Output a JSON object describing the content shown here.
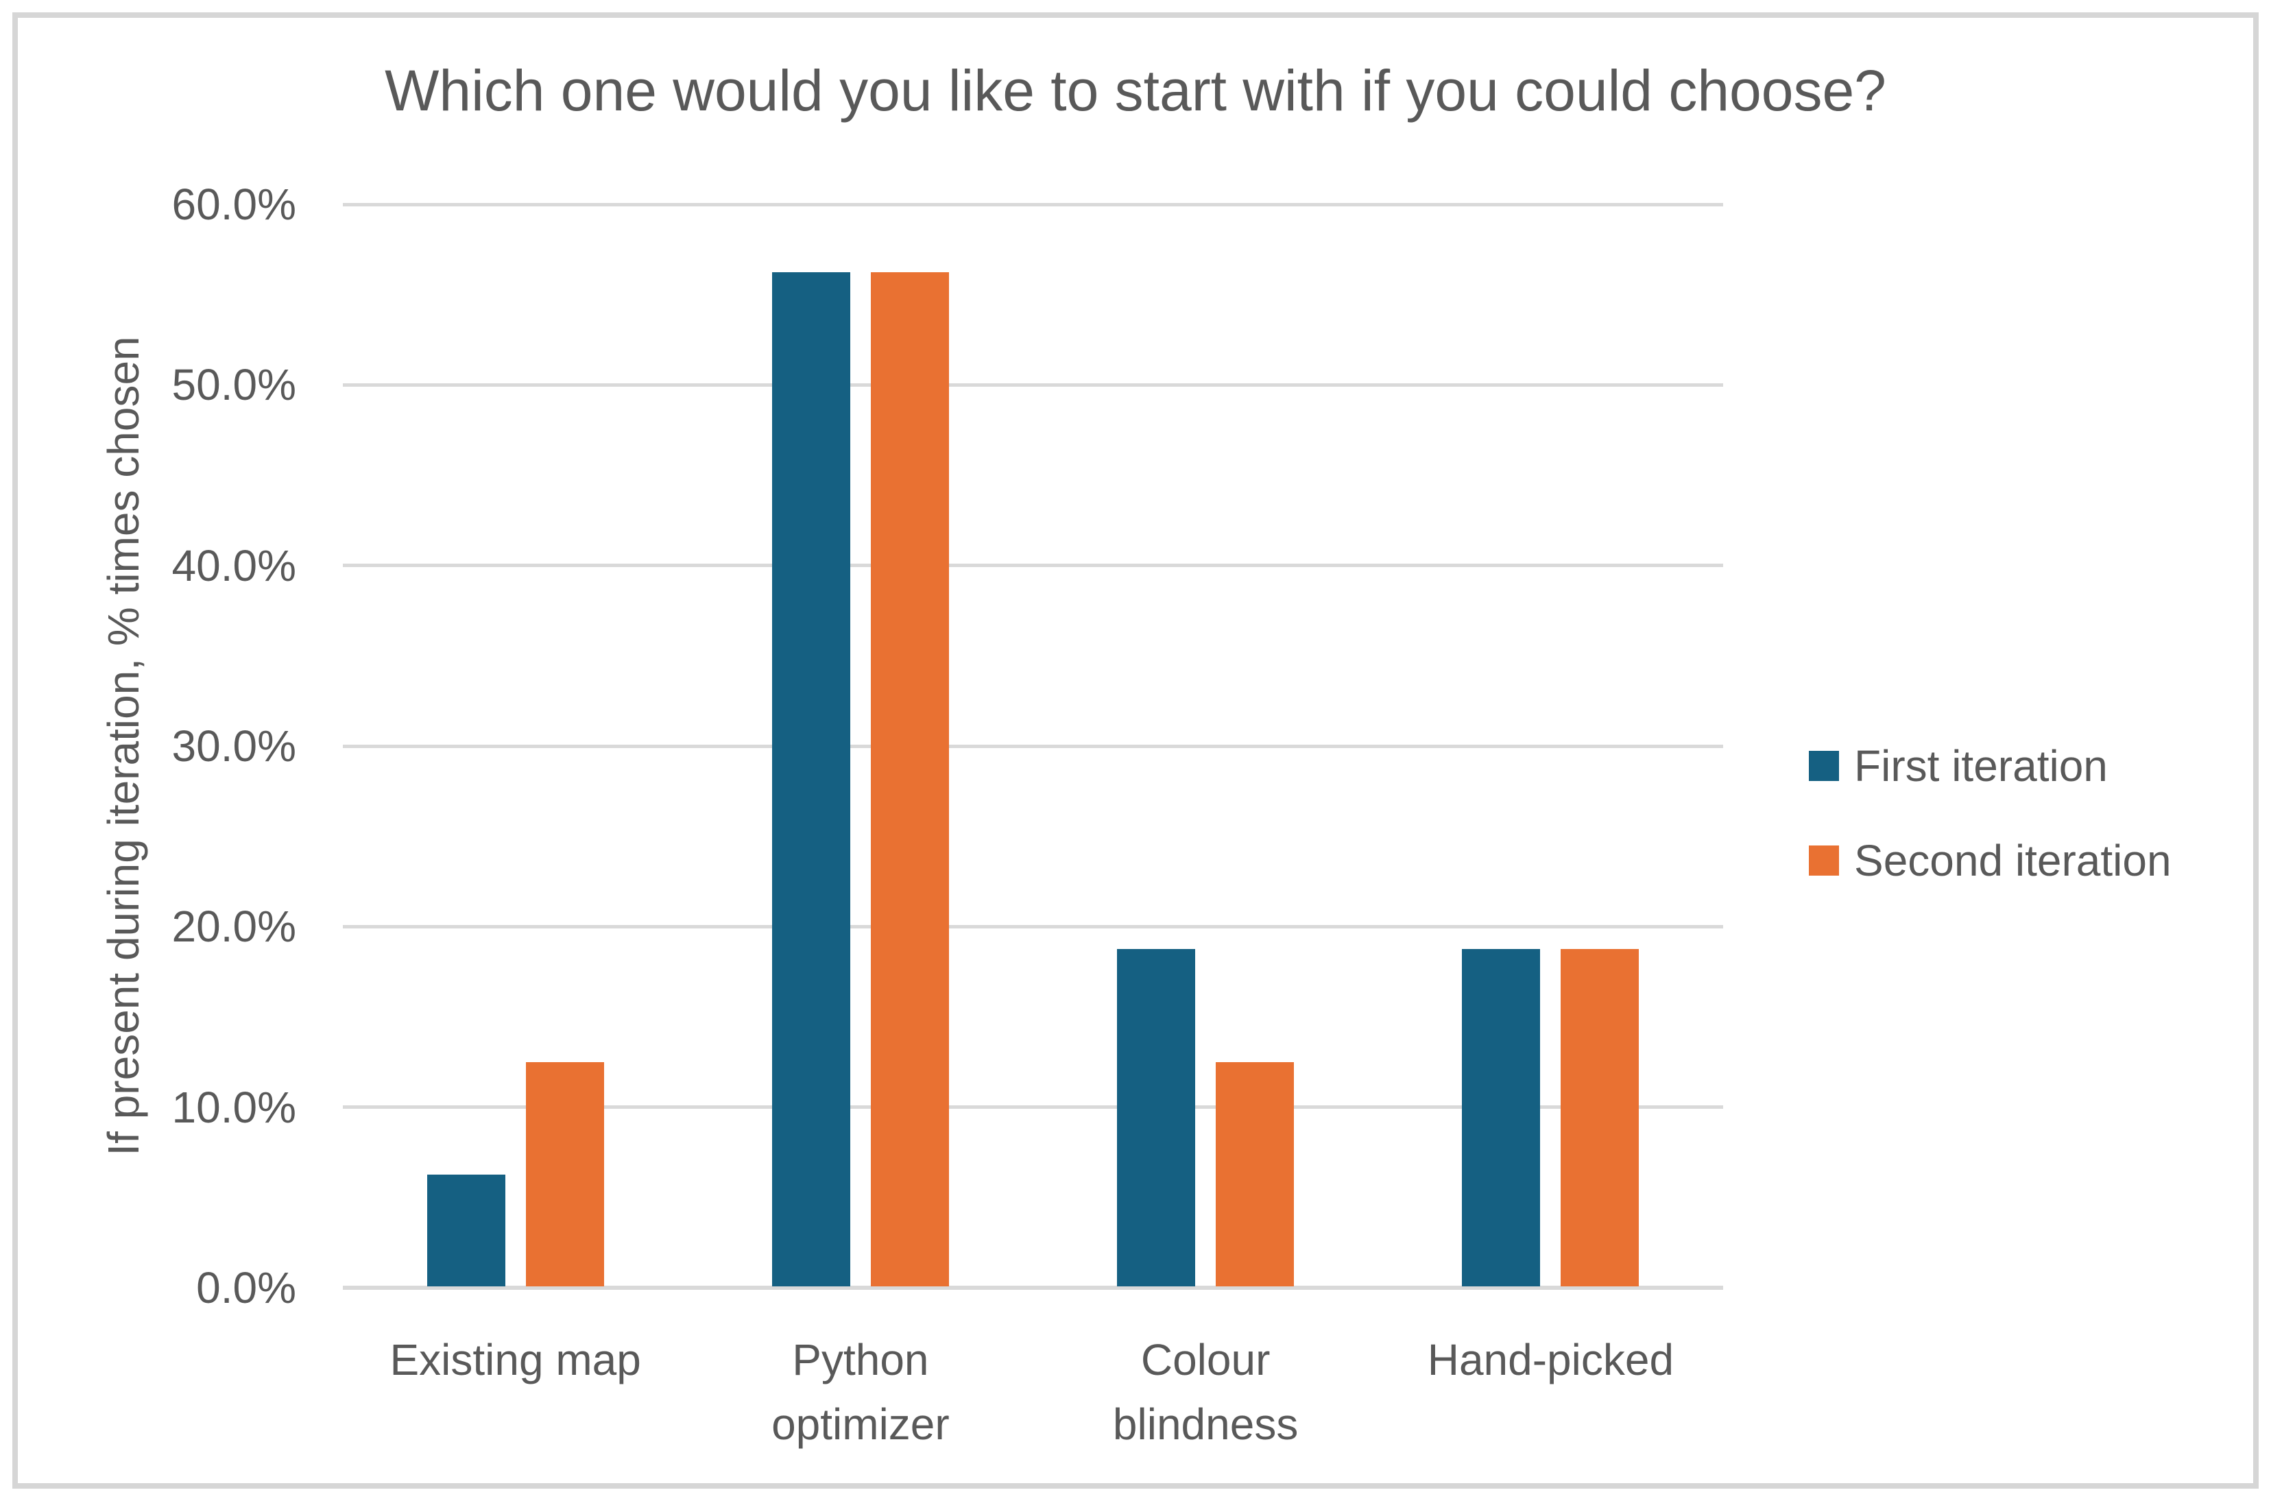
{
  "chart_data": {
    "type": "bar",
    "title": "Which one would you like to start with if you could choose?",
    "xlabel": "",
    "ylabel": "If present during iteration, % times chosen",
    "categories": [
      "Existing map",
      "Python optimizer",
      "Colour blindness",
      "Hand-picked"
    ],
    "category_lines": [
      [
        "Existing map"
      ],
      [
        "Python",
        "optimizer"
      ],
      [
        "Colour",
        "blindness"
      ],
      [
        "Hand-picked"
      ]
    ],
    "series": [
      {
        "name": "First iteration",
        "color": "#156082",
        "values": [
          6.25,
          56.25,
          18.75,
          18.75
        ]
      },
      {
        "name": "Second iteration",
        "color": "#E97132",
        "values": [
          12.5,
          56.25,
          12.5,
          18.75
        ]
      }
    ],
    "y_axis": {
      "min": 0,
      "max": 60,
      "step": 10,
      "unit": "%",
      "tick_labels": [
        "0.0%",
        "10.0%",
        "20.0%",
        "30.0%",
        "40.0%",
        "50.0%",
        "60.0%"
      ]
    },
    "grid": "horizontal",
    "legend_position": "right",
    "colors": {
      "text": "#595959",
      "gridline": "#D9D9D9",
      "frame_border": "#D6D6D6",
      "background": "#FFFFFF"
    }
  }
}
